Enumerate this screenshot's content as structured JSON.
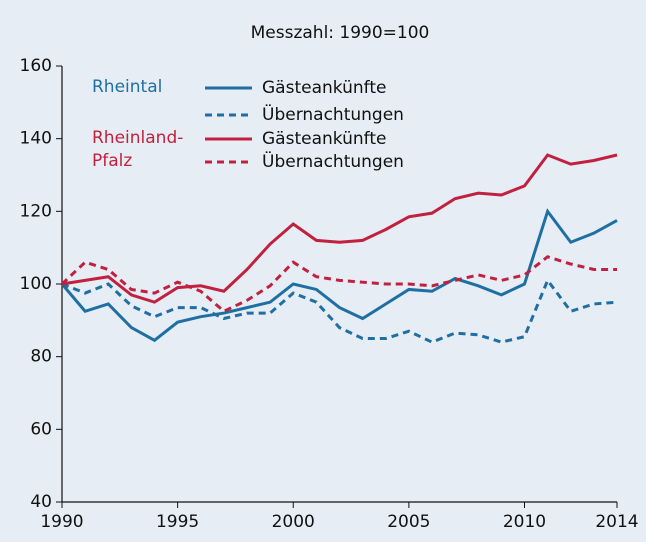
{
  "chart_data": {
    "type": "line",
    "title": "Messzahl: 1990=100",
    "x": [
      1990,
      1991,
      1992,
      1993,
      1994,
      1995,
      1996,
      1997,
      1998,
      1999,
      2000,
      2001,
      2002,
      2003,
      2004,
      2005,
      2006,
      2007,
      2008,
      2009,
      2010,
      2011,
      2012,
      2013,
      2014
    ],
    "series": [
      {
        "group": "Rheintal",
        "name": "Gästeankünfte",
        "color": "#1f6fa3",
        "dashed": false,
        "values": [
          100,
          92.5,
          94.5,
          88,
          84.5,
          89.5,
          91,
          92,
          93.5,
          95,
          100,
          98.5,
          93.5,
          90.5,
          94.5,
          98.5,
          98,
          101.5,
          99.5,
          97,
          100,
          120,
          111.5,
          114,
          117.5
        ]
      },
      {
        "name": "Übernachtungen",
        "color": "#1f6fa3",
        "dashed": true,
        "values": [
          100,
          97.5,
          100,
          94,
          91,
          93.5,
          93.5,
          90.5,
          92,
          92,
          97.5,
          95,
          88,
          85,
          85,
          87,
          84,
          86.5,
          86,
          84,
          85.5,
          101,
          92.5,
          94.5,
          95
        ]
      },
      {
        "group": "Rheinland-Pfalz",
        "name": "Gästeankünfte",
        "color": "#c0213f",
        "dashed": false,
        "values": [
          100,
          101,
          102,
          97,
          95,
          99,
          99.5,
          98,
          104,
          111,
          116.5,
          112,
          111.5,
          112,
          115,
          118.5,
          119.5,
          123.5,
          125,
          124.5,
          127,
          135.5,
          133,
          134,
          135.5
        ]
      },
      {
        "name": "Übernachtungen",
        "color": "#c0213f",
        "dashed": true,
        "values": [
          100,
          106,
          104,
          98.5,
          97.5,
          100.5,
          98,
          92.5,
          95.5,
          99.5,
          106,
          102,
          101,
          100.5,
          100,
          100,
          99.5,
          101,
          102.5,
          101,
          102.5,
          107.5,
          105.5,
          104,
          104
        ]
      }
    ],
    "xlim": [
      1990,
      2014
    ],
    "xticks": [
      1990,
      1995,
      2000,
      2005,
      2010,
      2014
    ],
    "ylim": [
      40,
      160
    ],
    "yticks": [
      40,
      60,
      80,
      100,
      120,
      140,
      160
    ],
    "grid": false
  }
}
